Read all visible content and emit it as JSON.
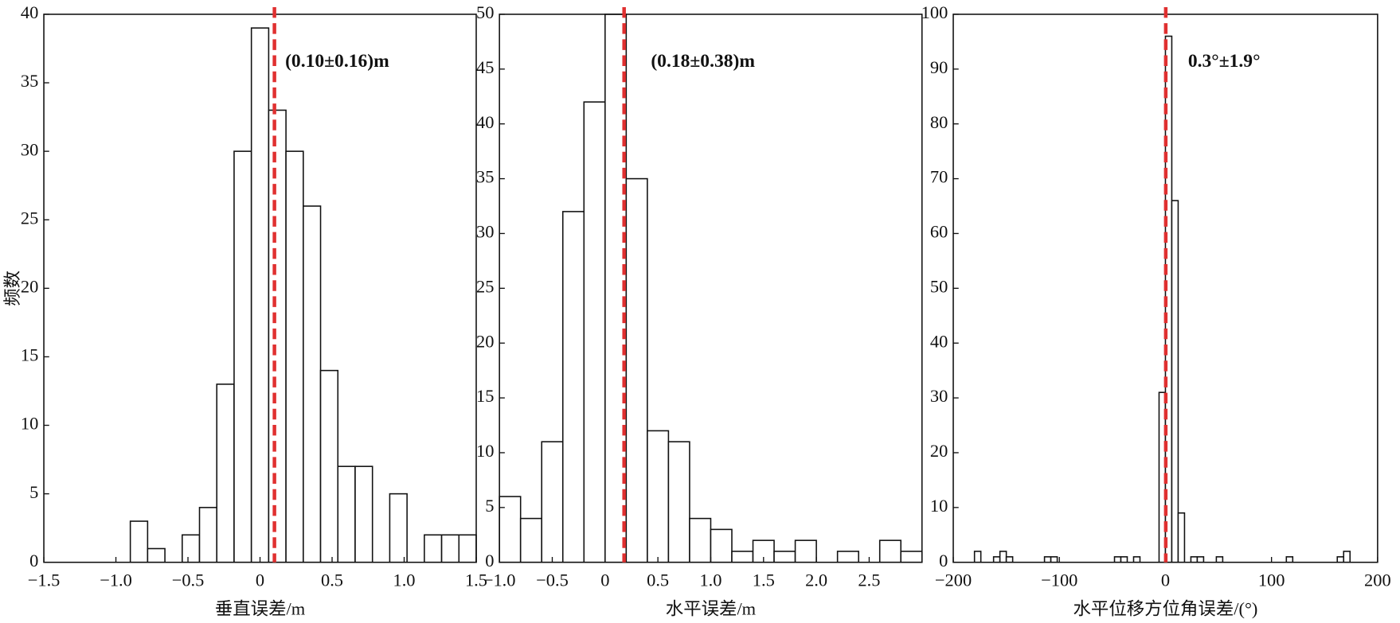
{
  "chart_data": [
    {
      "type": "histogram",
      "xlabel": "垂直误差/m",
      "ylabel": "频数",
      "annotation": "(0.10±0.16)m",
      "mean": 0.1,
      "mean_color": "#e03030",
      "color": "#ffffff",
      "bins": [
        -0.9,
        -0.78,
        -0.66,
        -0.54,
        -0.42,
        -0.3,
        -0.18,
        -0.06,
        0.06,
        0.18,
        0.3,
        0.42,
        0.54,
        0.66,
        0.78,
        0.9,
        1.02,
        1.14,
        1.26,
        1.38,
        1.5
      ],
      "counts": [
        3,
        1,
        0,
        2,
        4,
        13,
        30,
        39,
        33,
        30,
        26,
        14,
        7,
        7,
        0,
        5,
        0,
        2,
        2,
        2
      ],
      "xlim": [
        -1.5,
        1.5
      ],
      "ylim": [
        0,
        40
      ],
      "xticks": [
        {
          "value": -1.5,
          "label": "−1.5"
        },
        {
          "value": -1,
          "label": "−1.0"
        },
        {
          "value": -0.5,
          "label": "−0.5"
        },
        0,
        0.5,
        {
          "value": 1,
          "label": "1.0"
        },
        1.5
      ],
      "yticks": [
        0,
        5,
        10,
        15,
        20,
        25,
        30,
        35,
        40
      ]
    },
    {
      "type": "histogram",
      "xlabel": "水平误差/m",
      "annotation": "(0.18±0.38)m",
      "mean": 0.18,
      "mean_color": "#e03030",
      "color": "#ffffff",
      "bins": [
        -1.0,
        -0.8,
        -0.6,
        -0.4,
        -0.2,
        0,
        0.2,
        0.4,
        0.6,
        0.8,
        1.0,
        1.2,
        1.4,
        1.6,
        1.8,
        2.0,
        2.2,
        2.4,
        2.6,
        2.8,
        3.0
      ],
      "counts": [
        6,
        4,
        11,
        32,
        42,
        50,
        35,
        12,
        11,
        4,
        3,
        1,
        2,
        1,
        2,
        0,
        1,
        0,
        2,
        1
      ],
      "xlim": [
        -1.0,
        3.0
      ],
      "ylim": [
        0,
        50
      ],
      "xticks": [
        {
          "value": -1,
          "label": "−1.0"
        },
        {
          "value": -0.5,
          "label": "−0.5"
        },
        0,
        0.5,
        {
          "value": 1,
          "label": "1.0"
        },
        1.5,
        {
          "value": 2,
          "label": "2.0"
        },
        2.5
      ],
      "yticks": [
        0,
        5,
        10,
        15,
        20,
        25,
        30,
        35,
        40,
        45,
        50
      ]
    },
    {
      "type": "histogram",
      "xlabel": "水平位移方位角误差/(°)",
      "annotation": "0.3°±1.9°",
      "mean": 0.3,
      "mean_color": "#e03030",
      "color": "#ffffff",
      "bins": [
        -180,
        -174,
        -168,
        -162,
        -156,
        -150,
        -144,
        -138,
        -132,
        -126,
        -120,
        -114,
        -108,
        -102,
        -96,
        -90,
        -84,
        -78,
        -72,
        -66,
        -60,
        -54,
        -48,
        -42,
        -36,
        -30,
        -24,
        -18,
        -12,
        -6,
        0,
        6,
        12,
        18,
        24,
        30,
        36,
        42,
        48,
        54,
        60,
        66,
        72,
        78,
        84,
        90,
        96,
        102,
        108,
        114,
        120,
        126,
        132,
        138,
        144,
        150,
        156,
        162,
        168,
        174,
        180
      ],
      "counts": [
        2,
        0,
        0,
        1,
        2,
        1,
        0,
        0,
        0,
        0,
        0,
        1,
        1,
        0,
        0,
        0,
        0,
        0,
        0,
        0,
        0,
        0,
        1,
        1,
        0,
        1,
        0,
        0,
        0,
        31,
        96,
        66,
        9,
        0,
        1,
        1,
        0,
        0,
        1,
        0,
        0,
        0,
        0,
        0,
        0,
        0,
        0,
        0,
        0,
        1,
        0,
        0,
        0,
        0,
        0,
        0,
        0,
        1,
        2,
        0
      ],
      "xlim": [
        -200,
        200
      ],
      "ylim": [
        0,
        100
      ],
      "xticks": [
        {
          "value": -200,
          "label": "−200"
        },
        {
          "value": -100,
          "label": "−100"
        },
        0,
        100,
        200
      ],
      "yticks": [
        0,
        10,
        20,
        30,
        40,
        50,
        60,
        70,
        80,
        90,
        100
      ]
    }
  ]
}
